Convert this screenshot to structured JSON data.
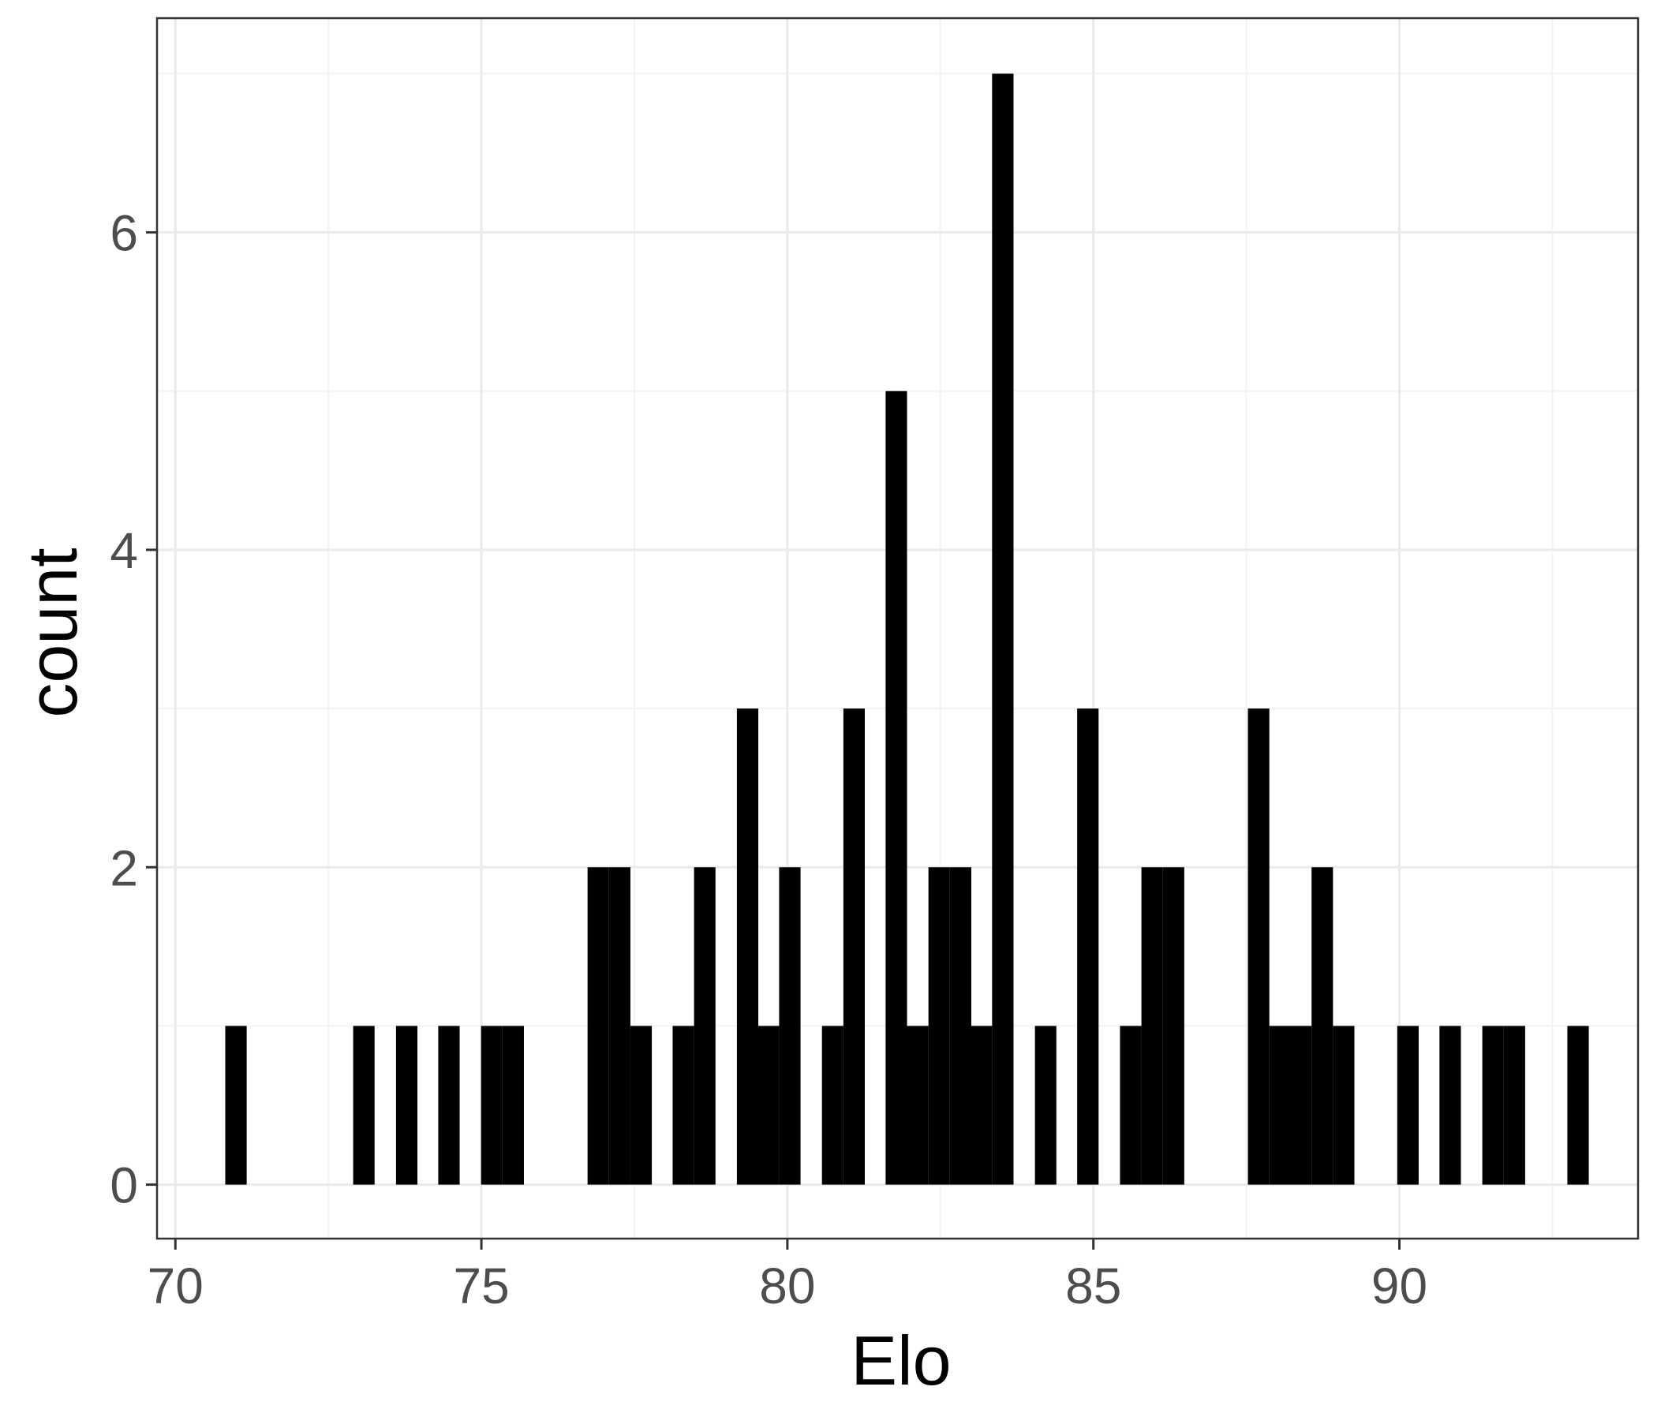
{
  "chart_data": {
    "type": "bar",
    "subtype": "histogram",
    "title": "",
    "xlabel": "Elo",
    "ylabel": "count",
    "xlim": [
      69.7,
      93.9
    ],
    "ylim": [
      -0.34,
      7.35
    ],
    "xticks": [
      70,
      75,
      80,
      85,
      90
    ],
    "yticks": [
      0,
      2,
      4,
      6
    ],
    "xtick_labels": [
      "70",
      "75",
      "80",
      "85",
      "90"
    ],
    "ytick_labels": [
      "0",
      "2",
      "4",
      "6"
    ],
    "grid": true,
    "legend": "none",
    "bin_width": 0.35,
    "bins": [
      {
        "x": 70.99,
        "count": 1
      },
      {
        "x": 73.08,
        "count": 1
      },
      {
        "x": 73.78,
        "count": 1
      },
      {
        "x": 74.47,
        "count": 1
      },
      {
        "x": 75.17,
        "count": 1
      },
      {
        "x": 75.52,
        "count": 1
      },
      {
        "x": 76.91,
        "count": 2
      },
      {
        "x": 77.26,
        "count": 2
      },
      {
        "x": 77.61,
        "count": 1
      },
      {
        "x": 78.3,
        "count": 1
      },
      {
        "x": 78.65,
        "count": 2
      },
      {
        "x": 79.35,
        "count": 3
      },
      {
        "x": 79.69,
        "count": 1
      },
      {
        "x": 80.04,
        "count": 2
      },
      {
        "x": 80.74,
        "count": 1
      },
      {
        "x": 81.09,
        "count": 3
      },
      {
        "x": 81.78,
        "count": 5
      },
      {
        "x": 82.13,
        "count": 1
      },
      {
        "x": 82.48,
        "count": 2
      },
      {
        "x": 82.83,
        "count": 2
      },
      {
        "x": 83.17,
        "count": 1
      },
      {
        "x": 83.52,
        "count": 7
      },
      {
        "x": 84.22,
        "count": 1
      },
      {
        "x": 84.91,
        "count": 3
      },
      {
        "x": 85.61,
        "count": 1
      },
      {
        "x": 85.96,
        "count": 2
      },
      {
        "x": 86.31,
        "count": 2
      },
      {
        "x": 87.7,
        "count": 3
      },
      {
        "x": 88.05,
        "count": 1
      },
      {
        "x": 88.39,
        "count": 1
      },
      {
        "x": 88.74,
        "count": 2
      },
      {
        "x": 89.09,
        "count": 1
      },
      {
        "x": 90.14,
        "count": 1
      },
      {
        "x": 90.83,
        "count": 1
      },
      {
        "x": 91.53,
        "count": 1
      },
      {
        "x": 91.88,
        "count": 1
      },
      {
        "x": 92.92,
        "count": 1
      }
    ],
    "colors": {
      "bar": "#000000",
      "panel_background": "#ffffff",
      "panel_border": "#333333",
      "grid_major": "#ebebeb",
      "grid_minor": "#f4f4f4",
      "tick_label": "#4d4d4d",
      "axis_title": "#000000"
    }
  }
}
